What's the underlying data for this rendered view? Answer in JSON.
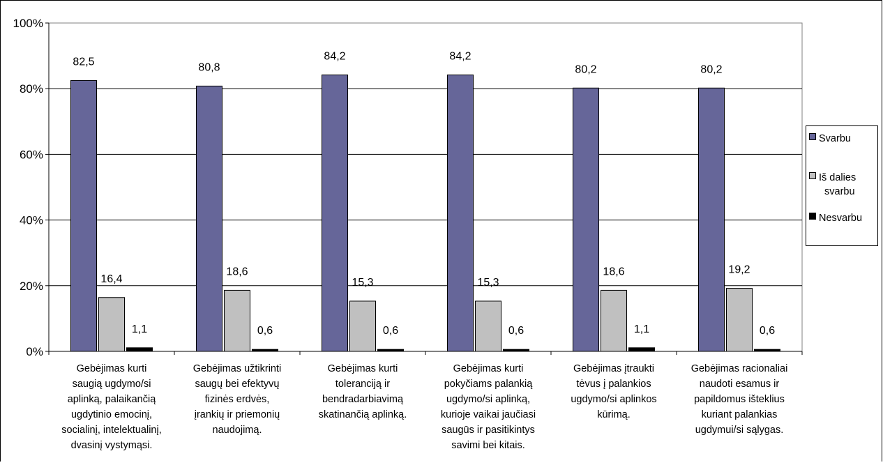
{
  "chart_data": {
    "type": "bar",
    "categories": [
      "Gebėjimas kurti saugią ugdymo/si aplinką, palaikančią ugdytinio emocinį, socialinį, intelektualinį, dvasinį vystymąsi.",
      "Gebėjimas užtikrinti saugų bei efektyvų fizinės erdvės, įrankių ir priemonių naudojimą.",
      "Gebėjimas kurti toleranciją ir bendradarbiavimą skatinančią aplinką.",
      "Gebėjimas kurti pokyčiams palankią ugdymo/si aplinką, kurioje vaikai jaučiasi saugūs ir pasitikintys savimi bei kitais.",
      "Gebėjimas įtraukti tėvus į palankios ugdymo/si aplinkos kūrimą.",
      "Gebėjimas racionaliai naudoti esamus ir papildomus išteklius kuriant palankias ugdymui/si sąlygas."
    ],
    "series": [
      {
        "name": "Svarbu",
        "values": [
          82.5,
          80.8,
          84.2,
          84.2,
          80.2,
          80.2
        ],
        "labels": [
          "82,5",
          "80,8",
          "84,2",
          "84,2",
          "80,2",
          "80,2"
        ],
        "color": "#666699"
      },
      {
        "name": "Iš dalies svarbu",
        "values": [
          16.4,
          18.6,
          15.3,
          15.3,
          18.6,
          19.2
        ],
        "labels": [
          "16,4",
          "18,6",
          "15,3",
          "15,3",
          "18,6",
          "19,2"
        ],
        "color": "#c0c0c0"
      },
      {
        "name": "Nesvarbu",
        "values": [
          1.1,
          0.6,
          0.6,
          0.6,
          1.1,
          0.6
        ],
        "labels": [
          "1,1",
          "0,6",
          "0,6",
          "0,6",
          "1,1",
          "0,6"
        ],
        "color": "#000000"
      }
    ],
    "yticks": [
      "0%",
      "20%",
      "40%",
      "60%",
      "80%",
      "100%"
    ],
    "ylim": [
      0,
      100
    ],
    "grid": true,
    "legend_position": "right",
    "title": "",
    "xlabel": "",
    "ylabel": ""
  },
  "category_lines": [
    [
      "Gebėjimas kurti",
      "saugią ugdymo/si",
      "aplinką, palaikančią",
      "ugdytinio emocinį,",
      "socialinį, intelektualinį,",
      "dvasinį vystymąsi."
    ],
    [
      "Gebėjimas užtikrinti",
      "saugų bei efektyvų",
      "fizinės erdvės,",
      "įrankių ir priemonių",
      "naudojimą."
    ],
    [
      "Gebėjimas kurti",
      "toleranciją ir",
      "bendradarbiavimą",
      "skatinančią aplinką."
    ],
    [
      "Gebėjimas kurti",
      "pokyčiams palankią",
      "ugdymo/si aplinką,",
      "kurioje vaikai jaučiasi",
      "saugūs ir pasitikintys",
      "savimi bei kitais."
    ],
    [
      "Gebėjimas įtraukti",
      "tėvus į palankios",
      "ugdymo/si aplinkos",
      "kūrimą."
    ],
    [
      "Gebėjimas racionaliai",
      "naudoti esamus ir",
      "papildomus išteklius",
      "kuriant palankias",
      "ugdymui/si sąlygas."
    ]
  ],
  "legend": {
    "svarbu": "Svarbu",
    "is_dalies_line1": "Iš dalies",
    "is_dalies_line2": "svarbu",
    "nesvarbu": "Nesvarbu"
  }
}
